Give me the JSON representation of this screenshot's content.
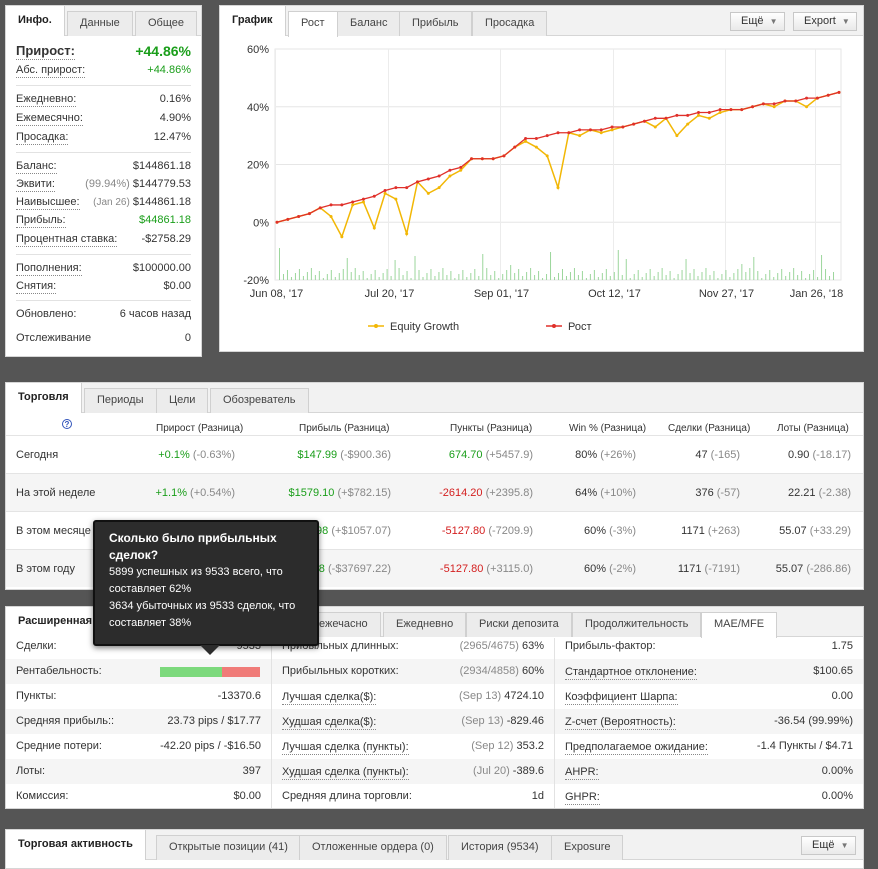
{
  "info": {
    "tabs": [
      "Инфо.",
      "Данные",
      "Общее"
    ],
    "gain_label": "Прирост:",
    "gain_value": "+44.86%",
    "abs_gain_label": "Абс. прирост:",
    "abs_gain_value": "+44.86%",
    "daily_label": "Ежедневно:",
    "daily_value": "0.16%",
    "monthly_label": "Ежемесячно:",
    "monthly_value": "4.90%",
    "drawdown_label": "Просадка:",
    "drawdown_value": "12.47%",
    "balance_label": "Баланс:",
    "balance_value": "$144861.18",
    "equity_label": "Эквити:",
    "equity_pct": "(99.94%)",
    "equity_value": "$144779.53",
    "highest_label": "Наивысшее:",
    "highest_date": "(Jan 26)",
    "highest_value": "$144861.18",
    "profit_label": "Прибыль:",
    "profit_value": "$44861.18",
    "interest_label": "Процентная ставка:",
    "interest_value": "-$2758.29",
    "deposits_label": "Пополнения:",
    "deposits_value": "$100000.00",
    "withdrawals_label": "Снятия:",
    "withdrawals_value": "$0.00",
    "updated_label": "Обновлено:",
    "updated_value": "6 часов назад",
    "tracking_label": "Отслеживание",
    "tracking_value": "0"
  },
  "chart": {
    "tabs": [
      "График",
      "Рост",
      "Баланс",
      "Прибыль",
      "Просадка"
    ],
    "more_label": "Ещё",
    "export_label": "Export"
  },
  "chart_data": {
    "type": "line",
    "title": "",
    "y_ticks": [
      "60%",
      "40%",
      "20%",
      "0%",
      "-20%"
    ],
    "ylim": [
      -20,
      60
    ],
    "x_ticks": [
      "Jun 08, '17",
      "Jul 20, '17",
      "Sep 01, '17",
      "Oct 12, '17",
      "Nov 27, '17",
      "Jan 26, '18"
    ],
    "series": [
      {
        "name": "Equity Growth",
        "color": "#f2b705",
        "values": [
          0,
          1,
          2,
          3,
          5,
          2,
          -5,
          6,
          7,
          -2,
          10,
          8,
          -4,
          14,
          10,
          12,
          16,
          18,
          22,
          22,
          22,
          23,
          26,
          28,
          26,
          23,
          12,
          31,
          30,
          32,
          31,
          32,
          33,
          34,
          35,
          33,
          36,
          30,
          34,
          37,
          36,
          38,
          39,
          39,
          40,
          41,
          40,
          42,
          42,
          40,
          43,
          44,
          45
        ]
      },
      {
        "name": "Рост",
        "color": "#e0302a",
        "values": [
          0,
          1,
          2,
          3,
          5,
          6,
          6,
          7,
          8,
          9,
          11,
          12,
          12,
          14,
          15,
          16,
          18,
          19,
          22,
          22,
          22,
          23,
          26,
          29,
          29,
          30,
          31,
          31,
          32,
          32,
          32,
          33,
          33,
          34,
          35,
          36,
          36,
          37,
          37,
          38,
          38,
          39,
          39,
          39,
          40,
          41,
          41,
          42,
          42,
          43,
          43,
          44,
          45
        ]
      }
    ]
  },
  "trading": {
    "tabs": [
      "Торговля",
      "Периоды",
      "Цели",
      "Обозреватель"
    ],
    "headers": [
      "Прирост (Разница)",
      "Прибыль (Разница)",
      "Пункты (Разница)",
      "Win % (Разница)",
      "Сделки (Разница)",
      "Лоты (Разница)"
    ],
    "rows": [
      {
        "period": "Сегодня",
        "gain": "+0.1%",
        "gain_diff": "(-0.63%)",
        "profit": "$147.99",
        "profit_diff": "(-$900.36)",
        "pips": "674.70",
        "pips_diff": "(+5457.9)",
        "win": "80%",
        "win_diff": "(+26%)",
        "trades": "47",
        "trades_diff": "(-165)",
        "lots": "0.90",
        "lots_diff": "(-18.17)"
      },
      {
        "period": "На этой неделе",
        "gain": "+1.1%",
        "gain_diff": "(+0.54%)",
        "profit": "$1579.10",
        "profit_diff": "(+$782.15)",
        "pips": "-2614.20",
        "pips_diff": "(+2395.8)",
        "win": "64%",
        "win_diff": "(+10%)",
        "trades": "376",
        "trades_diff": "(-57)",
        "lots": "22.21",
        "lots_diff": "(-2.38)"
      },
      {
        "period": "В этом месяце",
        "gain": "",
        "gain_diff": "",
        "profit": "98",
        "profit_diff": "(+$1057.07)",
        "pips": "-5127.80",
        "pips_diff": "(-7209.9)",
        "win": "60%",
        "win_diff": "(-3%)",
        "trades": "1171",
        "trades_diff": "(+263)",
        "lots": "55.07",
        "lots_diff": "(+33.29)"
      },
      {
        "period": "В этом году",
        "gain": "",
        "gain_diff": "",
        "profit": "98",
        "profit_diff": "(-$37697.22)",
        "pips": "-5127.80",
        "pips_diff": "(+3115.0)",
        "win": "60%",
        "win_diff": "(-2%)",
        "trades": "1171",
        "trades_diff": "(-7191)",
        "lots": "55.07",
        "lots_diff": "(-286.86)"
      }
    ]
  },
  "tooltip": {
    "title": "Сколько было прибыльных сделок?",
    "line1": "5899 успешных из 9533 всего, что составляет 62%",
    "line2": "3634 убыточных из 9533 сделок, что составляет 38%",
    "win_fraction": 0.62
  },
  "advanced": {
    "tabs": [
      "Расширенная",
      "ежечасно",
      "Ежедневно",
      "Риски депозита",
      "Продолжительность",
      "MAE/MFE"
    ],
    "col1": [
      {
        "label": "Сделки:",
        "value": "9533"
      },
      {
        "label": "Рентабельность:",
        "value": ""
      },
      {
        "label": "Пункты:",
        "value": "-13370.6"
      },
      {
        "label": "Средняя прибыль::",
        "value": "23.73 pips / $17.77"
      },
      {
        "label": "Средние потери:",
        "value": "-42.20 pips / -$16.50"
      },
      {
        "label": "Лоты:",
        "value": "397"
      },
      {
        "label": "Комиссия:",
        "value": "$0.00"
      }
    ],
    "col2": [
      {
        "label": "Прибыльных длинных:",
        "note": "(2965/4675)",
        "value": "63%"
      },
      {
        "label": "Прибыльных коротких:",
        "note": "(2934/4858)",
        "value": "60%"
      },
      {
        "label": "Лучшая сделка($):",
        "note": "(Sep 13)",
        "value": "4724.10"
      },
      {
        "label": "Худшая сделка($):",
        "note": "(Sep 13)",
        "value": "-829.46"
      },
      {
        "label": "Лучшая сделка (пункты):",
        "note": "(Sep 12)",
        "value": "353.2"
      },
      {
        "label": "Худшая сделка (пункты):",
        "note": "(Jul 20)",
        "value": "-389.6"
      },
      {
        "label": "Средняя длина торговли:",
        "note": "",
        "value": "1d"
      }
    ],
    "col3": [
      {
        "label": "Прибыль-фактор:",
        "value": "1.75"
      },
      {
        "label": "Стандартное отклонение:",
        "value": "$100.65"
      },
      {
        "label": "Коэффициент Шарпа:",
        "value": "0.00"
      },
      {
        "label": "Z-счет (Вероятность):",
        "value": "-36.54 (99.99%)"
      },
      {
        "label": "Предполагаемое ожидание:",
        "value": "-1.4 Пункты / $4.71"
      },
      {
        "label": "AHPR:",
        "value": "0.00%"
      },
      {
        "label": "GHPR:",
        "value": "0.00%"
      }
    ]
  },
  "activity": {
    "tabs": [
      "Торговая активность",
      "Открытые позиции (41)",
      "Отложенные ордера (0)",
      "История (9534)",
      "Exposure"
    ],
    "more_label": "Ещё"
  }
}
